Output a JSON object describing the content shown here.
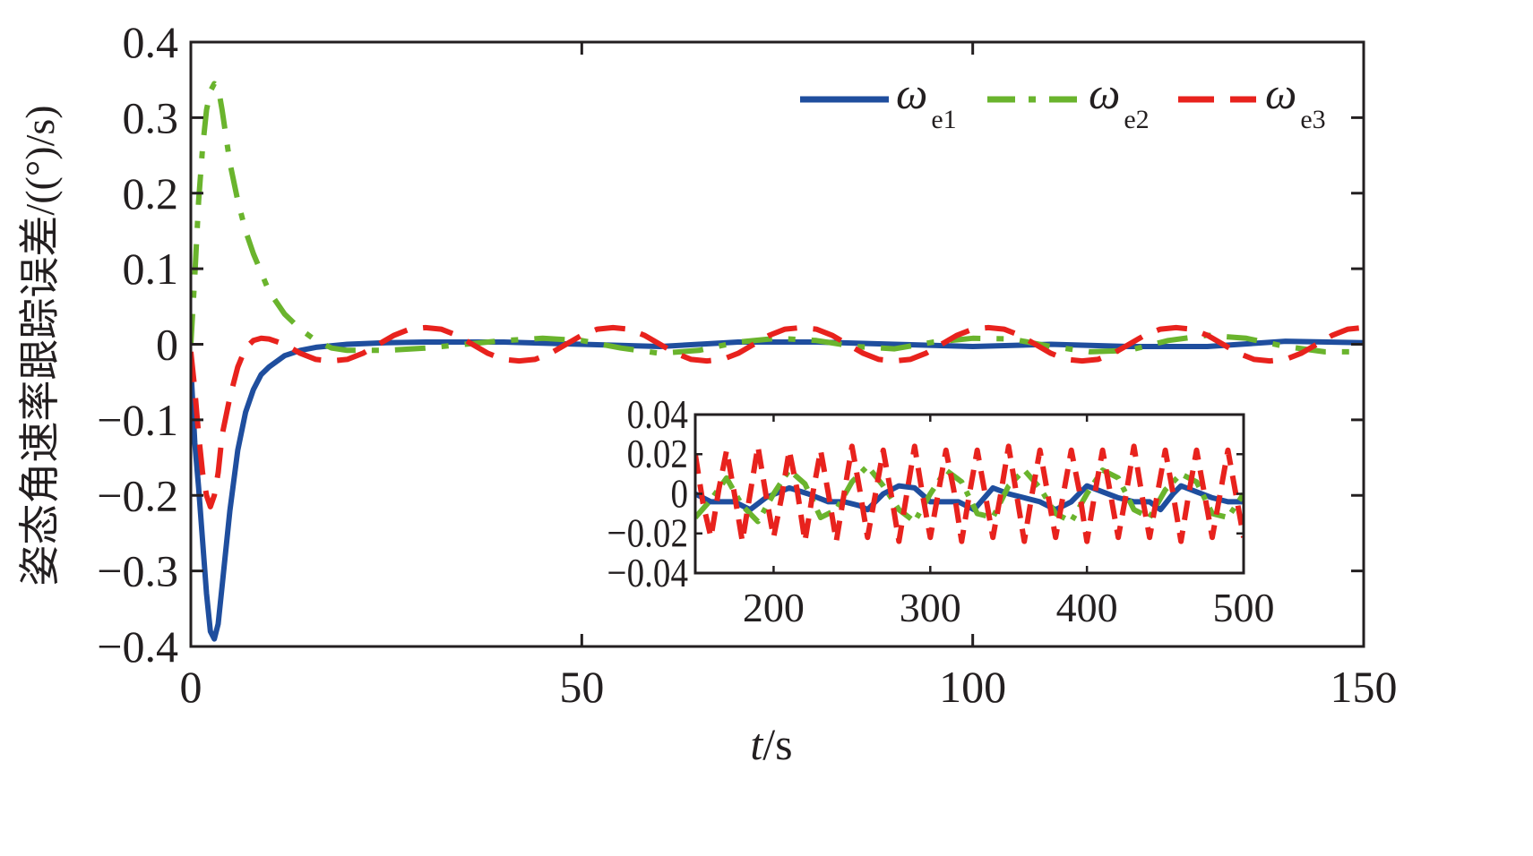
{
  "chart_data": [
    {
      "id": "main",
      "type": "line",
      "title": "",
      "xlabel_italic": "t",
      "xlabel_rest": "/s",
      "ylabel": "姿态角速率跟踪误差/((°)/s)",
      "xlim": [
        0,
        150
      ],
      "ylim": [
        -0.4,
        0.4
      ],
      "xticks": [
        0,
        50,
        100,
        150
      ],
      "xtick_labels": [
        "0",
        "50",
        "100",
        "150"
      ],
      "yticks": [
        0.4,
        0.3,
        0.2,
        0.1,
        0,
        -0.1,
        -0.2,
        -0.3,
        -0.4
      ],
      "ytick_labels": [
        "0.4",
        "0.3",
        "0.2",
        "0.1",
        "0",
        "−0.1",
        "−0.2",
        "−0.3",
        "−0.4"
      ],
      "grid": false,
      "legend_position": "top-right",
      "series": [
        {
          "name": "ωe1",
          "symbol": "ω",
          "subscript": "e1",
          "color": "#1f4e9e",
          "style": "solid",
          "x": [
            0,
            0.5,
            1,
            1.5,
            2,
            2.5,
            3,
            3.5,
            4,
            5,
            6,
            7,
            8,
            9,
            10,
            12,
            14,
            16,
            20,
            25,
            30,
            40,
            50,
            60,
            70,
            80,
            90,
            100,
            110,
            120,
            130,
            140,
            150
          ],
          "y": [
            -0.03,
            -0.13,
            -0.19,
            -0.26,
            -0.33,
            -0.38,
            -0.39,
            -0.37,
            -0.32,
            -0.22,
            -0.14,
            -0.09,
            -0.06,
            -0.04,
            -0.03,
            -0.015,
            -0.008,
            -0.004,
            0.0,
            0.002,
            0.003,
            0.003,
            0.0,
            -0.003,
            0.003,
            0.003,
            0.0,
            -0.003,
            0.0,
            -0.003,
            -0.003,
            0.004,
            0.002
          ]
        },
        {
          "name": "ωe2",
          "symbol": "ω",
          "subscript": "e2",
          "color": "#6ab42d",
          "style": "dashdot",
          "x": [
            0,
            0.5,
            1,
            1.5,
            2,
            2.5,
            3,
            3.5,
            4,
            5,
            6,
            7,
            8,
            10,
            12,
            14,
            16,
            18,
            20,
            25,
            30,
            35,
            40,
            45,
            50,
            55,
            60,
            65,
            70,
            75,
            80,
            85,
            90,
            95,
            100,
            105,
            110,
            115,
            120,
            125,
            130,
            135,
            140,
            145,
            150
          ],
          "y": [
            0.0,
            0.09,
            0.19,
            0.26,
            0.31,
            0.335,
            0.345,
            0.34,
            0.31,
            0.24,
            0.19,
            0.15,
            0.12,
            0.07,
            0.04,
            0.02,
            0.005,
            -0.005,
            -0.008,
            -0.008,
            -0.005,
            0.0,
            0.005,
            0.008,
            0.005,
            -0.005,
            -0.012,
            -0.008,
            0.003,
            0.008,
            0.005,
            -0.003,
            -0.006,
            0.003,
            0.008,
            0.007,
            -0.003,
            -0.01,
            -0.008,
            0.005,
            0.012,
            0.008,
            -0.003,
            -0.01,
            -0.01
          ]
        },
        {
          "name": "ωe3",
          "symbol": "ω",
          "subscript": "e3",
          "color": "#e8221d",
          "style": "dashed",
          "x": [
            0,
            0.5,
            1,
            1.5,
            2,
            2.5,
            3,
            3.5,
            4,
            5,
            6,
            7,
            8,
            9,
            10,
            12,
            14,
            16,
            18,
            20,
            22,
            24,
            26,
            28,
            30,
            32,
            34,
            36,
            38,
            40,
            42,
            44,
            46,
            48,
            50,
            52,
            54,
            56,
            58,
            60,
            62,
            64,
            66,
            68,
            70,
            72,
            74,
            76,
            78,
            80,
            82,
            84,
            86,
            88,
            90,
            92,
            94,
            96,
            98,
            100,
            102,
            104,
            106,
            108,
            110,
            112,
            114,
            116,
            118,
            120,
            122,
            124,
            126,
            128,
            130,
            132,
            134,
            136,
            138,
            140,
            142,
            144,
            146,
            148,
            150
          ],
          "y": [
            -0.01,
            -0.06,
            -0.12,
            -0.17,
            -0.2,
            -0.215,
            -0.2,
            -0.17,
            -0.12,
            -0.07,
            -0.03,
            -0.005,
            0.005,
            0.008,
            0.007,
            0.0,
            -0.012,
            -0.02,
            -0.022,
            -0.02,
            -0.012,
            0.0,
            0.012,
            0.02,
            0.022,
            0.02,
            0.012,
            0.0,
            -0.012,
            -0.02,
            -0.022,
            -0.02,
            -0.012,
            0.0,
            0.012,
            0.02,
            0.022,
            0.02,
            0.012,
            0.0,
            -0.012,
            -0.02,
            -0.022,
            -0.02,
            -0.012,
            0.0,
            0.012,
            0.02,
            0.022,
            0.02,
            0.012,
            0.0,
            -0.012,
            -0.02,
            -0.022,
            -0.02,
            -0.012,
            0.0,
            0.012,
            0.02,
            0.022,
            0.02,
            0.012,
            0.0,
            -0.012,
            -0.02,
            -0.022,
            -0.02,
            -0.012,
            0.0,
            0.012,
            0.02,
            0.022,
            0.02,
            0.012,
            0.0,
            -0.012,
            -0.02,
            -0.022,
            -0.02,
            -0.012,
            0.0,
            0.012,
            0.02,
            0.022
          ]
        }
      ]
    },
    {
      "id": "inset",
      "type": "line",
      "title": "",
      "xlim": [
        150,
        500
      ],
      "ylim": [
        -0.04,
        0.04
      ],
      "xticks": [
        200,
        300,
        400,
        500
      ],
      "xtick_labels": [
        "200",
        "300",
        "400",
        "500"
      ],
      "yticks": [
        0.04,
        0.02,
        0,
        -0.02,
        -0.04
      ],
      "ytick_labels": [
        "0.04",
        "0.02",
        "0",
        "−0.02",
        "−0.04"
      ],
      "grid": false,
      "series": [
        {
          "name": "ωe1",
          "color": "#1f4e9e",
          "style": "solid",
          "x": [
            150,
            160,
            175,
            185,
            195,
            210,
            222,
            235,
            245,
            255,
            260,
            270,
            280,
            290,
            300,
            310,
            318,
            328,
            340,
            350,
            360,
            370,
            380,
            390,
            400,
            410,
            420,
            430,
            440,
            447,
            455,
            460,
            470,
            480,
            490,
            500
          ],
          "y": [
            0.0,
            -0.004,
            -0.004,
            -0.008,
            -0.002,
            0.003,
            0.0,
            -0.004,
            -0.004,
            -0.006,
            -0.008,
            0.0,
            0.004,
            0.003,
            -0.004,
            -0.004,
            -0.004,
            -0.008,
            0.003,
            0.0,
            -0.002,
            -0.004,
            -0.008,
            -0.004,
            0.004,
            0.001,
            -0.002,
            -0.004,
            -0.004,
            -0.008,
            0.0,
            0.004,
            0.001,
            -0.002,
            -0.004,
            -0.004
          ]
        },
        {
          "name": "ωe2",
          "color": "#6ab42d",
          "style": "dashdot",
          "x": [
            150,
            160,
            170,
            180,
            190,
            200,
            210,
            220,
            230,
            240,
            250,
            260,
            270,
            280,
            290,
            300,
            310,
            320,
            330,
            340,
            350,
            360,
            370,
            380,
            390,
            400,
            410,
            420,
            430,
            440,
            450,
            460,
            470,
            480,
            490,
            500
          ],
          "y": [
            -0.012,
            -0.003,
            0.008,
            -0.006,
            -0.014,
            0.0,
            0.012,
            0.005,
            -0.012,
            -0.008,
            0.006,
            0.014,
            0.004,
            -0.008,
            -0.014,
            0.0,
            0.012,
            0.006,
            -0.01,
            -0.012,
            0.004,
            0.012,
            0.003,
            -0.01,
            -0.014,
            0.0,
            0.012,
            0.008,
            -0.008,
            -0.012,
            0.002,
            0.01,
            0.006,
            -0.01,
            -0.012,
            0.0
          ]
        },
        {
          "name": "ωe3",
          "color": "#e8221d",
          "style": "dashed",
          "x": [
            150,
            155,
            160,
            165,
            170,
            175,
            180,
            185,
            190,
            195,
            200,
            205,
            210,
            215,
            220,
            225,
            230,
            235,
            240,
            245,
            250,
            255,
            260,
            265,
            270,
            275,
            280,
            285,
            290,
            295,
            300,
            305,
            310,
            315,
            320,
            325,
            330,
            335,
            340,
            345,
            350,
            355,
            360,
            365,
            370,
            375,
            380,
            385,
            390,
            395,
            400,
            405,
            410,
            415,
            420,
            425,
            430,
            435,
            440,
            445,
            450,
            455,
            460,
            465,
            470,
            475,
            480,
            485,
            490,
            495,
            500
          ],
          "y": [
            0.02,
            -0.005,
            -0.022,
            0.002,
            0.022,
            0.0,
            -0.024,
            0.0,
            0.024,
            0.0,
            -0.022,
            -0.002,
            0.022,
            0.002,
            -0.024,
            0.0,
            0.022,
            0.0,
            -0.024,
            0.0,
            0.024,
            0.002,
            -0.022,
            0.0,
            0.022,
            0.0,
            -0.024,
            0.0,
            0.024,
            0.0,
            -0.022,
            0.0,
            0.022,
            0.002,
            -0.024,
            0.0,
            0.022,
            0.0,
            -0.022,
            0.0,
            0.024,
            0.0,
            -0.024,
            0.0,
            0.022,
            0.0,
            -0.022,
            0.0,
            0.022,
            0.002,
            -0.024,
            0.0,
            0.022,
            0.0,
            -0.022,
            0.0,
            0.024,
            0.0,
            -0.022,
            0.0,
            0.022,
            0.0,
            -0.024,
            0.0,
            0.022,
            0.0,
            -0.022,
            0.0,
            0.022,
            0.0,
            -0.022
          ]
        }
      ]
    }
  ]
}
